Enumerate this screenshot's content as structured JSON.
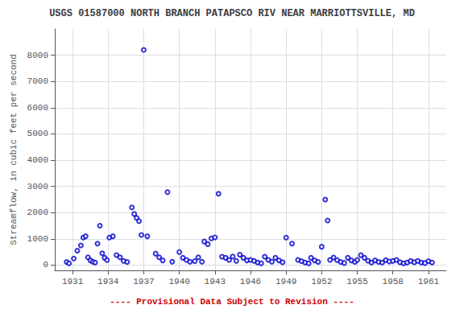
{
  "chart_data": {
    "type": "scatter",
    "title": "USGS 01587000 NORTH BRANCH PATAPSCO RIV NEAR MARRIOTTSVILLE, MD",
    "ylabel": "Streamflow, in cubic feet per second",
    "x": [
      1930.5,
      1930.7,
      1931.1,
      1931.4,
      1931.7,
      1931.9,
      1932.1,
      1932.3,
      1932.5,
      1932.7,
      1932.9,
      1933.1,
      1933.3,
      1933.5,
      1933.7,
      1933.9,
      1934.1,
      1934.4,
      1934.7,
      1935.0,
      1935.3,
      1935.6,
      1936.0,
      1936.2,
      1936.4,
      1936.6,
      1936.8,
      1937.0,
      1937.3,
      1938.0,
      1938.3,
      1938.6,
      1939.0,
      1939.4,
      1940.0,
      1940.3,
      1940.6,
      1940.9,
      1941.3,
      1941.6,
      1941.9,
      1942.1,
      1942.4,
      1942.7,
      1943.0,
      1943.3,
      1943.6,
      1943.9,
      1944.2,
      1944.5,
      1944.8,
      1945.1,
      1945.4,
      1945.7,
      1946.0,
      1946.3,
      1946.6,
      1946.9,
      1947.2,
      1947.5,
      1947.8,
      1948.1,
      1948.4,
      1948.7,
      1949.0,
      1949.5,
      1950.0,
      1950.3,
      1950.6,
      1950.9,
      1951.1,
      1951.4,
      1951.7,
      1952.0,
      1952.3,
      1952.5,
      1952.7,
      1953.0,
      1953.3,
      1953.6,
      1953.9,
      1954.2,
      1954.5,
      1954.8,
      1955.0,
      1955.3,
      1955.6,
      1955.9,
      1956.2,
      1956.5,
      1956.8,
      1957.1,
      1957.4,
      1957.7,
      1958.0,
      1958.3,
      1958.6,
      1958.9,
      1959.2,
      1959.5,
      1959.8,
      1960.1,
      1960.4,
      1960.7,
      1961.0,
      1961.3
    ],
    "values": [
      120,
      70,
      250,
      550,
      750,
      1050,
      1100,
      300,
      180,
      130,
      100,
      820,
      1500,
      450,
      280,
      190,
      1050,
      1100,
      380,
      300,
      160,
      120,
      2200,
      1950,
      1800,
      1680,
      1150,
      8200,
      1100,
      440,
      300,
      180,
      2780,
      130,
      500,
      280,
      200,
      130,
      150,
      300,
      130,
      900,
      800,
      1020,
      1060,
      2720,
      320,
      280,
      200,
      330,
      160,
      400,
      280,
      180,
      200,
      160,
      100,
      70,
      320,
      200,
      130,
      280,
      180,
      110,
      1050,
      820,
      200,
      150,
      100,
      70,
      280,
      180,
      120,
      700,
      2500,
      1700,
      200,
      290,
      190,
      120,
      80,
      280,
      180,
      120,
      200,
      380,
      280,
      170,
      100,
      180,
      120,
      100,
      190,
      140,
      160,
      200,
      110,
      70,
      100,
      160,
      110,
      160,
      100,
      80,
      150,
      100
    ],
    "color": "#0000cc",
    "marker": "emptyCircle",
    "xlim": [
      1929.5,
      1962.5
    ],
    "xticks": [
      1931,
      1934,
      1937,
      1940,
      1943,
      1946,
      1949,
      1952,
      1955,
      1958,
      1961
    ],
    "ylim": [
      -200,
      9000
    ],
    "yticks": [
      0,
      1000,
      2000,
      3000,
      4000,
      5000,
      6000,
      7000,
      8000
    ],
    "grid": true,
    "annotations": [
      {
        "text": "---- Provisional Data Subject to Revision ----",
        "color": "#cc0000"
      }
    ]
  }
}
